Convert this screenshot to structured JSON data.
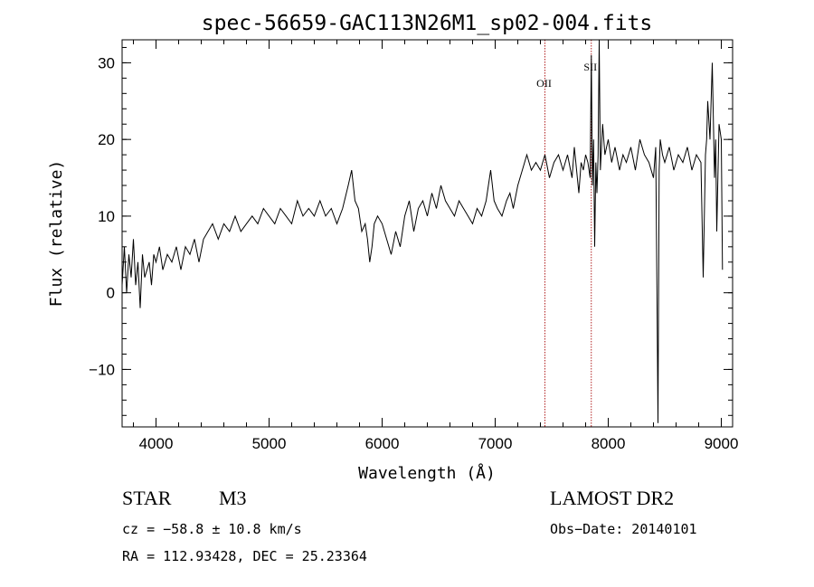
{
  "chart_data": {
    "type": "line",
    "title": "spec-56659-GAC113N26M1_sp02-004.fits",
    "xlabel": "Wavelength (Å)",
    "ylabel": "Flux (relative)",
    "xlim": [
      3700,
      9100
    ],
    "ylim": [
      -17.5,
      33
    ],
    "xticks": [
      4000,
      5000,
      6000,
      7000,
      8000,
      9000
    ],
    "xtick_labels": [
      "4000",
      "5000",
      "6000",
      "7000",
      "8000",
      "9000"
    ],
    "yticks": [
      -10,
      0,
      10,
      20,
      30
    ],
    "ytick_labels": [
      "−10",
      "0",
      "10",
      "20",
      "30"
    ],
    "x_minor_step": 200,
    "y_minor_step": 2,
    "grid": false,
    "series": [
      {
        "color": "#000000",
        "x": [
          3700,
          3720,
          3740,
          3760,
          3780,
          3800,
          3820,
          3840,
          3860,
          3880,
          3900,
          3920,
          3940,
          3960,
          3980,
          4000,
          4030,
          4060,
          4100,
          4140,
          4180,
          4220,
          4260,
          4300,
          4340,
          4380,
          4420,
          4460,
          4500,
          4550,
          4600,
          4650,
          4700,
          4750,
          4800,
          4850,
          4900,
          4950,
          5000,
          5050,
          5100,
          5150,
          5200,
          5250,
          5300,
          5350,
          5400,
          5450,
          5500,
          5550,
          5600,
          5650,
          5700,
          5730,
          5760,
          5790,
          5820,
          5850,
          5870,
          5890,
          5910,
          5930,
          5960,
          6000,
          6040,
          6080,
          6120,
          6160,
          6200,
          6240,
          6280,
          6320,
          6360,
          6400,
          6440,
          6480,
          6520,
          6560,
          6600,
          6640,
          6680,
          6720,
          6760,
          6800,
          6840,
          6880,
          6920,
          6940,
          6960,
          6990,
          7020,
          7060,
          7100,
          7130,
          7160,
          7200,
          7240,
          7280,
          7320,
          7360,
          7400,
          7440,
          7480,
          7520,
          7560,
          7600,
          7640,
          7680,
          7700,
          7720,
          7740,
          7760,
          7780,
          7800,
          7820,
          7840,
          7850,
          7860,
          7870,
          7880,
          7890,
          7900,
          7910,
          7920,
          7930,
          7950,
          7970,
          8000,
          8030,
          8060,
          8100,
          8130,
          8160,
          8200,
          8240,
          8280,
          8320,
          8360,
          8400,
          8420,
          8430,
          8440,
          8450,
          8460,
          8480,
          8500,
          8540,
          8580,
          8620,
          8660,
          8700,
          8740,
          8780,
          8820,
          8840,
          8860,
          8870,
          8880,
          8900,
          8920,
          8940,
          8950,
          8960,
          8980,
          9000,
          9010
        ],
        "y": [
          1,
          6,
          0,
          5,
          2,
          7,
          1,
          4,
          -2,
          5,
          2,
          3,
          4,
          1,
          5,
          4,
          6,
          3,
          5,
          4,
          6,
          3,
          6,
          5,
          7,
          4,
          7,
          8,
          9,
          7,
          9,
          8,
          10,
          8,
          9,
          10,
          9,
          11,
          10,
          9,
          11,
          10,
          9,
          12,
          10,
          11,
          10,
          12,
          10,
          11,
          9,
          11,
          14,
          16,
          12,
          11,
          8,
          9,
          7,
          4,
          6,
          9,
          10,
          9,
          7,
          5,
          8,
          6,
          10,
          12,
          8,
          11,
          12,
          10,
          13,
          11,
          14,
          12,
          11,
          10,
          12,
          11,
          10,
          9,
          11,
          10,
          12,
          14,
          16,
          12,
          11,
          10,
          12,
          13,
          11,
          14,
          16,
          18,
          16,
          17,
          16,
          18,
          15,
          17,
          18,
          16,
          18,
          15,
          19,
          16,
          13,
          17,
          16,
          18,
          17,
          15,
          31,
          14,
          20,
          6,
          17,
          13,
          18,
          33,
          16,
          22,
          18,
          20,
          17,
          19,
          16,
          18,
          17,
          19,
          16,
          20,
          18,
          17,
          15,
          19,
          1,
          -17,
          16,
          20,
          18,
          17,
          19,
          16,
          18,
          17,
          19,
          16,
          18,
          17,
          2,
          18,
          20,
          25,
          20,
          30,
          15,
          20,
          8,
          22,
          20,
          3
        ]
      }
    ],
    "reference_lines": [
      {
        "x": 7440,
        "label": "OII",
        "color": "#b22222"
      },
      {
        "x": 7850,
        "label": "SII",
        "color": "#b22222"
      }
    ],
    "annotations": {
      "object_class": "STAR",
      "subclass": "M3",
      "survey": "LAMOST DR2",
      "redshift": "cz = −58.8 ± 10.8 km/s",
      "obs_date": "Obs−Date: 20140101",
      "coords": "RA = 112.93428, DEC =  25.23364"
    }
  }
}
